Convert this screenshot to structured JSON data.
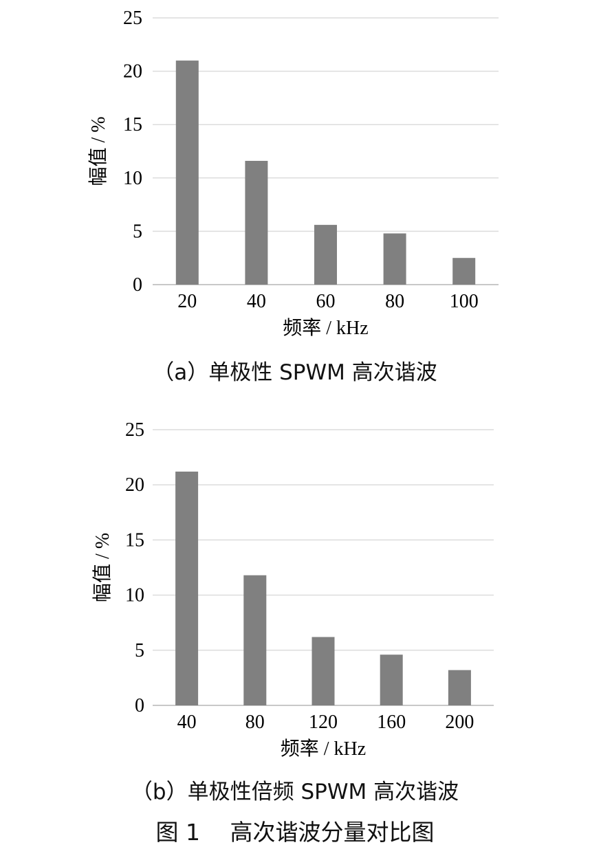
{
  "chart_data": [
    {
      "type": "bar",
      "categories": [
        "20",
        "40",
        "60",
        "80",
        "100"
      ],
      "values": [
        21.0,
        11.6,
        5.6,
        4.8,
        2.5
      ],
      "xlabel": "频率 / kHz",
      "ylabel": "幅值 / %",
      "ylim": [
        0,
        25
      ],
      "yticks": [
        "0",
        "5",
        "10",
        "15",
        "20",
        "25"
      ],
      "grid": true,
      "bar_color": "#808080",
      "caption": "（a）单极性 SPWM 高次谐波"
    },
    {
      "type": "bar",
      "categories": [
        "40",
        "80",
        "120",
        "160",
        "200"
      ],
      "values": [
        21.2,
        11.8,
        6.2,
        4.6,
        3.2
      ],
      "xlabel": "频率 / kHz",
      "ylabel": "幅值 / %",
      "ylim": [
        0,
        25
      ],
      "yticks": [
        "0",
        "5",
        "10",
        "15",
        "20",
        "25"
      ],
      "grid": true,
      "bar_color": "#808080",
      "caption": "（b）单极性倍频 SPWM 高次谐波"
    }
  ],
  "figure_title": "图 1　 高次谐波分量对比图"
}
